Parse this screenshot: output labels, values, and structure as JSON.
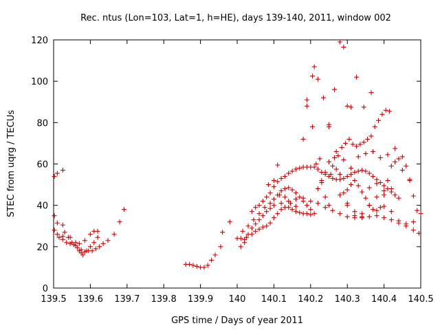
{
  "chart_data": {
    "type": "scatter",
    "title": "Rec. ntus (Lon=103, Lat=1, h=HE), days 139-140, 2011, window 002",
    "xlabel": "GPS time / Days of year 2011",
    "ylabel": "STEC from uqrg / TECUs",
    "xlim": [
      139.5,
      140.5
    ],
    "ylim": [
      0,
      120
    ],
    "xticks": [
      139.5,
      139.6,
      139.7,
      139.8,
      139.9,
      140.0,
      140.1,
      140.2,
      140.3,
      140.4,
      140.5
    ],
    "xtick_labels": [
      "139.5",
      "139.6",
      "139.7",
      "139.8",
      "139.9",
      "140",
      "140.1",
      "140.2",
      "140.3",
      "140.4",
      "140.5"
    ],
    "yticks": [
      0,
      20,
      40,
      60,
      80,
      100,
      120
    ],
    "ytick_labels": [
      "0",
      "20",
      "40",
      "60",
      "80",
      "100",
      "120"
    ],
    "grid": false,
    "marker": "+",
    "color": "#cc0000",
    "points": [
      [
        139.502,
        54
      ],
      [
        139.51,
        55.5
      ],
      [
        139.525,
        57
      ],
      [
        139.502,
        35
      ],
      [
        139.51,
        31.5
      ],
      [
        139.525,
        30.5
      ],
      [
        139.53,
        27
      ],
      [
        139.54,
        24.5
      ],
      [
        139.55,
        22
      ],
      [
        139.56,
        20.5
      ],
      [
        139.57,
        18
      ],
      [
        139.575,
        17
      ],
      [
        139.58,
        16
      ],
      [
        139.59,
        18
      ],
      [
        139.6,
        20
      ],
      [
        139.61,
        22
      ],
      [
        139.62,
        24.5
      ],
      [
        139.502,
        28
      ],
      [
        139.51,
        26
      ],
      [
        139.515,
        24.5
      ],
      [
        139.525,
        23.5
      ],
      [
        139.535,
        22
      ],
      [
        139.545,
        21.5
      ],
      [
        139.555,
        21
      ],
      [
        139.565,
        19.5
      ],
      [
        139.575,
        18.5
      ],
      [
        139.585,
        17.5
      ],
      [
        139.595,
        18
      ],
      [
        139.605,
        18
      ],
      [
        139.615,
        19
      ],
      [
        139.625,
        20
      ],
      [
        139.635,
        21.5
      ],
      [
        139.648,
        23
      ],
      [
        139.665,
        26
      ],
      [
        139.68,
        32
      ],
      [
        139.692,
        38
      ],
      [
        139.525,
        25
      ],
      [
        139.545,
        24.5
      ],
      [
        139.56,
        22
      ],
      [
        139.57,
        21.5
      ],
      [
        139.585,
        23
      ],
      [
        139.6,
        26
      ],
      [
        139.61,
        27.5
      ],
      [
        139.62,
        27.5
      ],
      [
        139.86,
        11.5
      ],
      [
        139.87,
        11.5
      ],
      [
        139.88,
        11
      ],
      [
        139.89,
        10.5
      ],
      [
        139.9,
        10
      ],
      [
        139.91,
        10
      ],
      [
        139.92,
        11
      ],
      [
        139.93,
        13.5
      ],
      [
        139.94,
        16
      ],
      [
        139.955,
        20
      ],
      [
        139.96,
        27
      ],
      [
        139.98,
        32
      ],
      [
        140.01,
        24
      ],
      [
        140.02,
        23.5
      ],
      [
        140.025,
        24.5
      ],
      [
        140.04,
        26
      ],
      [
        140.05,
        27.5
      ],
      [
        140.06,
        28.5
      ],
      [
        140.07,
        29.5
      ],
      [
        140.08,
        30
      ],
      [
        140.09,
        31.5
      ],
      [
        140.1,
        34
      ],
      [
        140.11,
        36
      ],
      [
        140.12,
        38
      ],
      [
        140.13,
        39
      ],
      [
        140.14,
        39
      ],
      [
        140.15,
        38
      ],
      [
        140.16,
        37
      ],
      [
        140.17,
        36.5
      ],
      [
        140.18,
        36
      ],
      [
        140.19,
        36
      ],
      [
        140.2,
        35.5
      ],
      [
        140.01,
        20
      ],
      [
        140.02,
        22
      ],
      [
        140.03,
        26
      ],
      [
        140.04,
        29
      ],
      [
        140.05,
        31
      ],
      [
        140.06,
        33
      ],
      [
        140.07,
        35
      ],
      [
        140.08,
        37
      ],
      [
        140.09,
        38.5
      ],
      [
        140.1,
        40
      ],
      [
        140.12,
        41
      ],
      [
        140.14,
        42
      ],
      [
        140.16,
        43
      ],
      [
        140.18,
        43.5
      ],
      [
        140.2,
        42
      ],
      [
        140.22,
        41
      ],
      [
        140.24,
        39
      ],
      [
        140.26,
        37.5
      ],
      [
        140.28,
        36
      ],
      [
        140.3,
        34.5
      ],
      [
        140.32,
        34
      ],
      [
        140.34,
        34
      ],
      [
        140.36,
        34.5
      ],
      [
        140.38,
        35
      ],
      [
        140.4,
        34
      ],
      [
        140.42,
        33
      ],
      [
        140.44,
        31.5
      ],
      [
        140.46,
        30
      ],
      [
        140.48,
        28
      ],
      [
        140.495,
        26.5
      ],
      [
        140.0,
        24
      ],
      [
        140.015,
        27.5
      ],
      [
        140.03,
        30
      ],
      [
        140.045,
        33
      ],
      [
        140.06,
        36
      ],
      [
        140.075,
        39
      ],
      [
        140.09,
        41
      ],
      [
        140.1,
        43
      ],
      [
        140.11,
        45
      ],
      [
        140.12,
        47
      ],
      [
        140.13,
        48
      ],
      [
        140.14,
        48.5
      ],
      [
        140.15,
        47.5
      ],
      [
        140.16,
        46
      ],
      [
        140.17,
        44
      ],
      [
        140.18,
        42
      ],
      [
        140.19,
        40
      ],
      [
        140.2,
        38
      ],
      [
        140.21,
        36
      ],
      [
        140.04,
        37
      ],
      [
        140.05,
        39
      ],
      [
        140.06,
        40
      ],
      [
        140.07,
        42
      ],
      [
        140.08,
        44
      ],
      [
        140.09,
        46
      ],
      [
        140.1,
        49
      ],
      [
        140.11,
        51.5
      ],
      [
        140.12,
        53
      ],
      [
        140.13,
        54
      ],
      [
        140.14,
        55.5
      ],
      [
        140.15,
        56.5
      ],
      [
        140.16,
        57.5
      ],
      [
        140.17,
        58
      ],
      [
        140.18,
        58.5
      ],
      [
        140.19,
        58.5
      ],
      [
        140.2,
        58.5
      ],
      [
        140.21,
        58.5
      ],
      [
        140.22,
        57.5
      ],
      [
        140.23,
        56
      ],
      [
        140.24,
        55
      ],
      [
        140.25,
        54
      ],
      [
        140.26,
        53
      ],
      [
        140.27,
        52.5
      ],
      [
        140.28,
        52.5
      ],
      [
        140.29,
        53
      ],
      [
        140.3,
        54
      ],
      [
        140.31,
        55
      ],
      [
        140.32,
        56
      ],
      [
        140.33,
        56.5
      ],
      [
        140.34,
        57
      ],
      [
        140.35,
        56.5
      ],
      [
        140.36,
        55.5
      ],
      [
        140.37,
        54
      ],
      [
        140.38,
        52.5
      ],
      [
        140.39,
        51
      ],
      [
        140.4,
        49.5
      ],
      [
        140.41,
        48
      ],
      [
        140.42,
        46.5
      ],
      [
        140.43,
        45
      ],
      [
        140.44,
        43.5
      ],
      [
        140.085,
        50
      ],
      [
        140.1,
        52
      ],
      [
        140.11,
        59.5
      ],
      [
        140.115,
        45
      ],
      [
        140.13,
        44
      ],
      [
        140.145,
        41
      ],
      [
        140.16,
        39.5
      ],
      [
        140.18,
        72
      ],
      [
        140.19,
        88
      ],
      [
        140.19,
        91
      ],
      [
        140.205,
        102.5
      ],
      [
        140.21,
        107
      ],
      [
        140.22,
        101
      ],
      [
        140.235,
        92
      ],
      [
        140.25,
        78
      ],
      [
        140.265,
        96
      ],
      [
        140.28,
        119
      ],
      [
        140.29,
        116.5
      ],
      [
        140.3,
        88
      ],
      [
        140.31,
        87.5
      ],
      [
        140.325,
        102
      ],
      [
        140.345,
        87.5
      ],
      [
        140.365,
        94.5
      ],
      [
        140.205,
        78
      ],
      [
        140.215,
        60
      ],
      [
        140.225,
        62.5
      ],
      [
        140.23,
        52
      ],
      [
        140.24,
        44
      ],
      [
        140.25,
        40
      ],
      [
        140.255,
        55
      ],
      [
        140.265,
        63
      ],
      [
        140.275,
        64
      ],
      [
        140.285,
        68
      ],
      [
        140.295,
        70
      ],
      [
        140.305,
        72
      ],
      [
        140.315,
        69.5
      ],
      [
        140.325,
        68.5
      ],
      [
        140.335,
        69.5
      ],
      [
        140.345,
        70.5
      ],
      [
        140.355,
        72
      ],
      [
        140.365,
        73.5
      ],
      [
        140.375,
        78
      ],
      [
        140.385,
        81
      ],
      [
        140.395,
        84
      ],
      [
        140.405,
        86
      ],
      [
        140.415,
        85.5
      ],
      [
        140.22,
        48
      ],
      [
        140.23,
        51
      ],
      [
        140.24,
        56
      ],
      [
        140.25,
        61
      ],
      [
        140.26,
        59
      ],
      [
        140.27,
        57.5
      ],
      [
        140.28,
        55
      ],
      [
        140.29,
        46
      ],
      [
        140.3,
        47.5
      ],
      [
        140.31,
        50
      ],
      [
        140.32,
        52
      ],
      [
        140.33,
        49.5
      ],
      [
        140.34,
        46.5
      ],
      [
        140.35,
        43.5
      ],
      [
        140.36,
        40
      ],
      [
        140.37,
        38
      ],
      [
        140.38,
        37.5
      ],
      [
        140.39,
        39
      ],
      [
        140.4,
        45
      ],
      [
        140.41,
        52
      ],
      [
        140.42,
        59
      ],
      [
        140.43,
        61
      ],
      [
        140.44,
        62.5
      ],
      [
        140.45,
        63.5
      ],
      [
        140.46,
        59
      ],
      [
        140.47,
        52
      ],
      [
        140.48,
        44.5
      ],
      [
        140.49,
        37.5
      ],
      [
        140.25,
        79
      ],
      [
        140.27,
        66
      ],
      [
        140.29,
        62
      ],
      [
        140.31,
        58
      ],
      [
        140.33,
        63.5
      ],
      [
        140.35,
        65
      ],
      [
        140.37,
        66
      ],
      [
        140.39,
        63
      ],
      [
        140.41,
        64.5
      ],
      [
        140.43,
        67.5
      ],
      [
        140.45,
        57
      ],
      [
        140.47,
        52.5
      ],
      [
        140.3,
        41
      ],
      [
        140.32,
        37
      ],
      [
        140.34,
        36
      ],
      [
        140.36,
        40
      ],
      [
        140.38,
        44
      ],
      [
        140.4,
        47
      ],
      [
        140.42,
        48
      ],
      [
        140.44,
        32.5
      ],
      [
        140.46,
        31
      ],
      [
        140.48,
        32
      ],
      [
        140.5,
        36
      ],
      [
        140.28,
        45
      ],
      [
        140.3,
        40
      ],
      [
        140.32,
        35
      ],
      [
        140.34,
        34.5
      ],
      [
        140.36,
        48.5
      ],
      [
        140.38,
        50.5
      ],
      [
        140.4,
        39.5
      ],
      [
        140.42,
        37
      ]
    ]
  }
}
